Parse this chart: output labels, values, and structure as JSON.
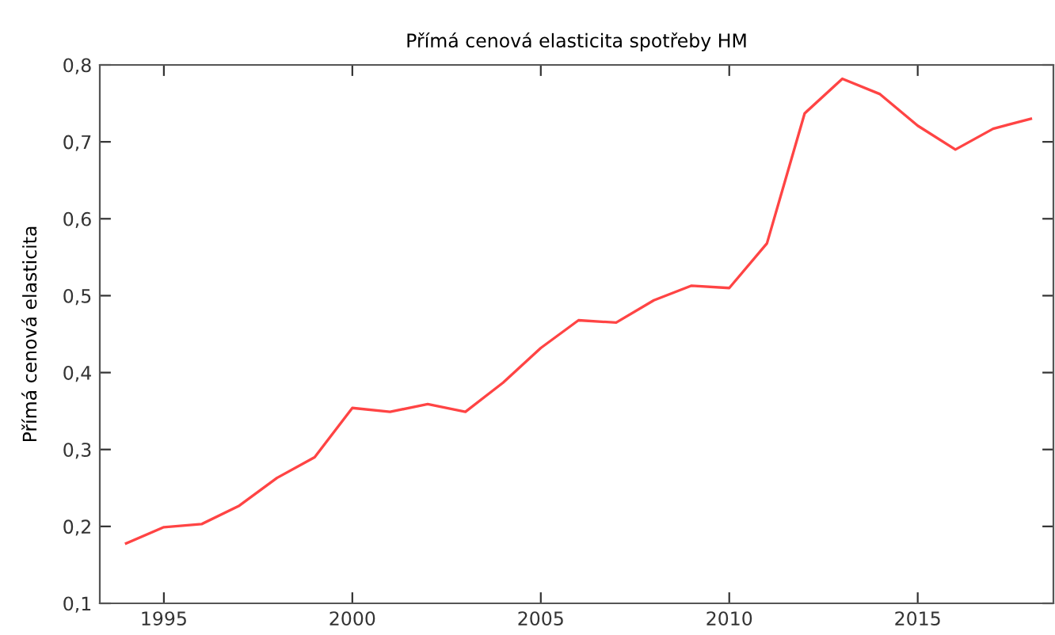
{
  "chart_data": {
    "type": "line",
    "title": "Přímá cenová elasticita spotřeby HM",
    "ylabel": "Přímá cenová elasticita",
    "x": [
      1994,
      1995,
      1996,
      1997,
      1998,
      1999,
      2000,
      2001,
      2002,
      2003,
      2004,
      2005,
      2006,
      2007,
      2008,
      2009,
      2010,
      2011,
      2012,
      2013,
      2014,
      2015,
      2016,
      2017,
      2018
    ],
    "series": [
      {
        "color": "#ff4444",
        "values": [
          0.178,
          0.199,
          0.203,
          0.227,
          0.263,
          0.29,
          0.354,
          0.349,
          0.359,
          0.349,
          0.387,
          0.432,
          0.468,
          0.465,
          0.494,
          0.513,
          0.51,
          0.568,
          0.737,
          0.782,
          0.762,
          0.721,
          0.69,
          0.717,
          0.73
        ]
      }
    ],
    "xlim": [
      1993.3,
      2018.6
    ],
    "xticks": [
      1995,
      2000,
      2005,
      2010,
      2015
    ],
    "ylim": [
      0.1,
      0.8
    ],
    "yticks": [
      {
        "value": 0.1,
        "label": "0,1"
      },
      {
        "value": 0.2,
        "label": "0,2"
      },
      {
        "value": 0.3,
        "label": "0,3"
      },
      {
        "value": 0.4,
        "label": "0,4"
      },
      {
        "value": 0.5,
        "label": "0,5"
      },
      {
        "value": 0.6,
        "label": "0,6"
      },
      {
        "value": 0.7,
        "label": "0,7"
      },
      {
        "value": 0.8,
        "label": "0,8"
      }
    ],
    "grid": false,
    "marker": "none",
    "line_style": "solid"
  }
}
